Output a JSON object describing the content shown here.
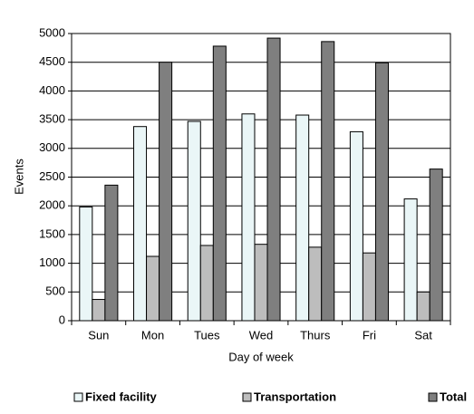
{
  "chart_data": {
    "type": "bar",
    "x_label": "Day of week",
    "y_label": "Events",
    "categories": [
      "Sun",
      "Mon",
      "Tues",
      "Wed",
      "Thurs",
      "Fri",
      "Sat"
    ],
    "series": [
      {
        "name": "Fixed facility",
        "color": "#eaf6f7",
        "values": [
          1980,
          3380,
          3470,
          3600,
          3580,
          3290,
          2120
        ]
      },
      {
        "name": "Transportation",
        "color": "#bdbdbd",
        "values": [
          370,
          1120,
          1310,
          1330,
          1280,
          1180,
          500
        ]
      },
      {
        "name": "Total",
        "color": "#7f7f7f",
        "values": [
          2360,
          4500,
          4780,
          4920,
          4860,
          4490,
          2640
        ]
      }
    ],
    "ylim": [
      0,
      5000
    ],
    "yticks": [
      0,
      500,
      1000,
      1500,
      2000,
      2500,
      3000,
      3500,
      4000,
      4500,
      5000
    ],
    "grid": true,
    "legend": "bottom"
  }
}
